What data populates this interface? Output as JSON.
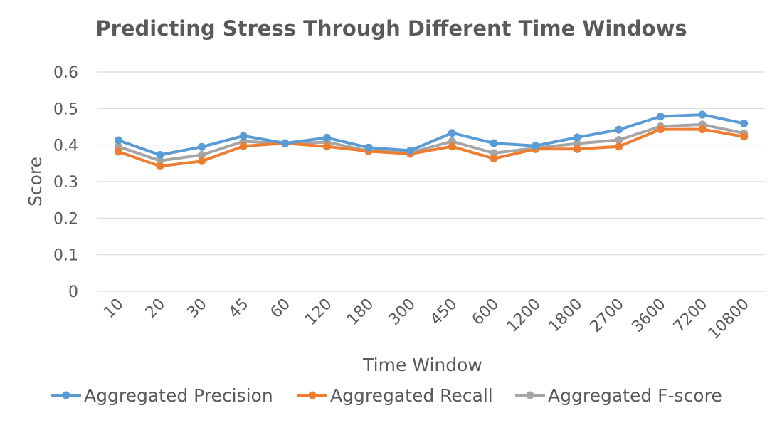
{
  "chart_data": {
    "type": "line",
    "title": "Predicting Stress Through Different Time Windows",
    "xlabel": "Time Window",
    "ylabel": "Score",
    "ylim": [
      0,
      0.6
    ],
    "yticks": [
      "0",
      "0.1",
      "0.2",
      "0.3",
      "0.4",
      "0.5",
      "0.6"
    ],
    "grid": true,
    "legend_position": "bottom",
    "categories": [
      "10",
      "20",
      "30",
      "45",
      "60",
      "120",
      "180",
      "300",
      "450",
      "600",
      "1200",
      "1800",
      "2700",
      "3600",
      "7200",
      "10800"
    ],
    "series": [
      {
        "name": "Aggregated Precision",
        "color": "#5b9bd5",
        "values": [
          0.413,
          0.373,
          0.395,
          0.425,
          0.405,
          0.42,
          0.393,
          0.385,
          0.433,
          0.405,
          0.398,
          0.421,
          0.442,
          0.478,
          0.483,
          0.459
        ]
      },
      {
        "name": "Aggregated Recall",
        "color": "#ed7d31",
        "values": [
          0.382,
          0.342,
          0.356,
          0.397,
          0.405,
          0.396,
          0.383,
          0.376,
          0.396,
          0.363,
          0.389,
          0.389,
          0.396,
          0.443,
          0.443,
          0.423
        ]
      },
      {
        "name": "Aggregated F-score",
        "color": "#a5a5a5",
        "values": [
          0.396,
          0.357,
          0.373,
          0.41,
          0.404,
          0.408,
          0.384,
          0.379,
          0.41,
          0.378,
          0.392,
          0.404,
          0.414,
          0.451,
          0.456,
          0.432
        ]
      }
    ]
  }
}
